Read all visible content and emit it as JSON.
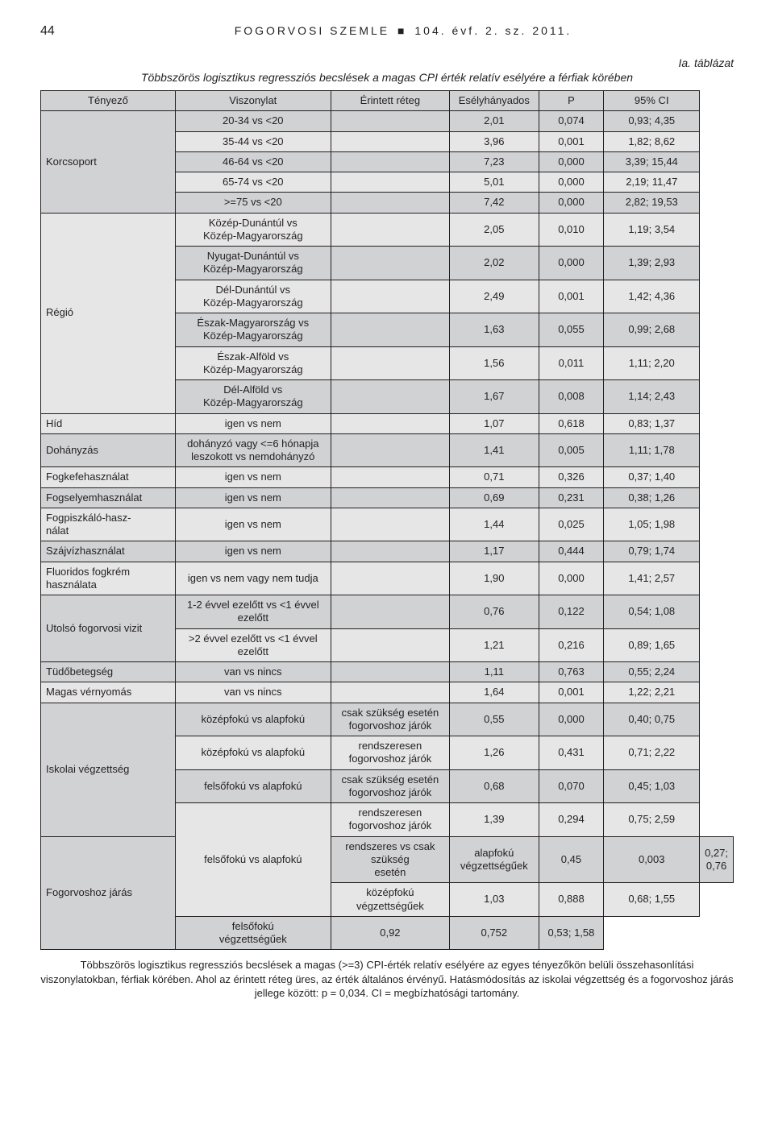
{
  "header": {
    "page_number": "44",
    "journal_name": "FOGORVOSI SZEMLE",
    "square": "■",
    "issue": "104. évf. 2. sz. 2011."
  },
  "table": {
    "label": "Ia. táblázat",
    "caption": "Többszörös logisztikus regressziós becslések a magas CPI érték relatív esélyére a férfiak körében",
    "columns": [
      "Tényező",
      "Viszonylat",
      "Érintett réteg",
      "Esélyhányados",
      "P",
      "95% CI"
    ],
    "col_widths": [
      "20%",
      "24%",
      "18%",
      "13%",
      "10%",
      "15%"
    ],
    "header_bg": "#d1d2d4",
    "row_light_bg": "#e6e6e7",
    "row_dark_bg": "#d1d2d4"
  },
  "rows": [
    {
      "factor": "Korcsoport",
      "frows": 5,
      "rel": "20-34 vs <20",
      "layer": "",
      "or": "2,01",
      "p": "0,074",
      "ci": "0,93; 4,35",
      "shade": "dark"
    },
    {
      "rel": "35-44 vs <20",
      "layer": "",
      "or": "3,96",
      "p": "0,001",
      "ci": "1,82; 8,62",
      "shade": "light"
    },
    {
      "rel": "46-64 vs <20",
      "layer": "",
      "or": "7,23",
      "p": "0,000",
      "ci": "3,39; 15,44",
      "shade": "dark"
    },
    {
      "rel": "65-74 vs <20",
      "layer": "",
      "or": "5,01",
      "p": "0,000",
      "ci": "2,19; 11,47",
      "shade": "light"
    },
    {
      "rel": ">=75 vs <20",
      "layer": "",
      "or": "7,42",
      "p": "0,000",
      "ci": "2,82; 19,53",
      "shade": "dark"
    },
    {
      "factor": "Régió",
      "frows": 6,
      "rel": "Közép-Dunántúl vs\nKözép-Magyarország",
      "layer": "",
      "or": "2,05",
      "p": "0,010",
      "ci": "1,19; 3,54",
      "shade": "light"
    },
    {
      "rel": "Nyugat-Dunántúl vs\nKözép-Magyarország",
      "layer": "",
      "or": "2,02",
      "p": "0,000",
      "ci": "1,39; 2,93",
      "shade": "dark"
    },
    {
      "rel": "Dél-Dunántúl vs\nKözép-Magyarország",
      "layer": "",
      "or": "2,49",
      "p": "0,001",
      "ci": "1,42; 4,36",
      "shade": "light"
    },
    {
      "rel": "Észak-Magyarország vs\nKözép-Magyarország",
      "layer": "",
      "or": "1,63",
      "p": "0,055",
      "ci": "0,99; 2,68",
      "shade": "dark"
    },
    {
      "rel": "Észak-Alföld vs\nKözép-Magyarország",
      "layer": "",
      "or": "1,56",
      "p": "0,011",
      "ci": "1,11; 2,20",
      "shade": "light"
    },
    {
      "rel": "Dél-Alföld vs\nKözép-Magyarország",
      "layer": "",
      "or": "1,67",
      "p": "0,008",
      "ci": "1,14; 2,43",
      "shade": "dark"
    },
    {
      "factor": "Híd",
      "frows": 1,
      "rel": "igen vs nem",
      "layer": "",
      "or": "1,07",
      "p": "0,618",
      "ci": "0,83; 1,37",
      "shade": "light"
    },
    {
      "factor": "Dohányzás",
      "frows": 1,
      "rel": "dohányzó vagy <=6 hónapja\nleszokott vs nemdohányzó",
      "layer": "",
      "or": "1,41",
      "p": "0,005",
      "ci": "1,11; 1,78",
      "shade": "dark"
    },
    {
      "factor": "Fogkefehasználat",
      "frows": 1,
      "rel": "igen vs nem",
      "layer": "",
      "or": "0,71",
      "p": "0,326",
      "ci": "0,37; 1,40",
      "shade": "light"
    },
    {
      "factor": "Fogselyemhasználat",
      "frows": 1,
      "rel": "igen vs nem",
      "layer": "",
      "or": "0,69",
      "p": "0,231",
      "ci": "0,38; 1,26",
      "shade": "dark"
    },
    {
      "factor": "Fogpiszkáló-hasz-\nnálat",
      "frows": 1,
      "rel": "igen vs nem",
      "layer": "",
      "or": "1,44",
      "p": "0,025",
      "ci": "1,05; 1,98",
      "shade": "light"
    },
    {
      "factor": "Szájvízhasználat",
      "frows": 1,
      "rel": "igen vs nem",
      "layer": "",
      "or": "1,17",
      "p": "0,444",
      "ci": "0,79; 1,74",
      "shade": "dark"
    },
    {
      "factor": "Fluoridos fogkrém\nhasználata",
      "frows": 1,
      "rel": "igen vs nem vagy nem tudja",
      "layer": "",
      "or": "1,90",
      "p": "0,000",
      "ci": "1,41; 2,57",
      "shade": "light"
    },
    {
      "factor": "Utolsó fogorvosi vizit",
      "frows": 2,
      "rel": "1-2 évvel ezelőtt vs <1 évvel\nezelőtt",
      "layer": "",
      "or": "0,76",
      "p": "0,122",
      "ci": "0,54; 1,08",
      "shade": "dark"
    },
    {
      "rel": ">2 évvel ezelőtt vs <1 évvel\nezelőtt",
      "layer": "",
      "or": "1,21",
      "p": "0,216",
      "ci": "0,89; 1,65",
      "shade": "light"
    },
    {
      "factor": "Tüdőbetegség",
      "frows": 1,
      "rel": "van vs nincs",
      "layer": "",
      "or": "1,11",
      "p": "0,763",
      "ci": "0,55; 2,24",
      "shade": "dark"
    },
    {
      "factor": "Magas vérnyomás",
      "frows": 1,
      "rel": "van vs nincs",
      "layer": "",
      "or": "1,64",
      "p": "0,001",
      "ci": "1,22; 2,21",
      "shade": "light"
    },
    {
      "factor": "Iskolai végzettség",
      "frows": 4,
      "rel": "középfokú vs alapfokú",
      "layer": "csak szükség esetén\nfogorvoshoz járók",
      "or": "0,55",
      "p": "0,000",
      "ci": "0,40; 0,75",
      "shade": "dark"
    },
    {
      "rel": "középfokú vs alapfokú",
      "layer": "rendszeresen\nfogorvoshoz járók",
      "or": "1,26",
      "p": "0,431",
      "ci": "0,71; 2,22",
      "shade": "light"
    },
    {
      "rel": "felsőfokú vs alapfokú",
      "layer": "csak szükség esetén\nfogorvoshoz járók",
      "or": "0,68",
      "p": "0,070",
      "ci": "0,45; 1,03",
      "shade": "dark"
    },
    {
      "rel": "felsőfokú vs alapfokú",
      "layer": "rendszeresen\nfogorvoshoz járók",
      "or": "1,39",
      "p": "0,294",
      "ci": "0,75; 2,59",
      "shade": "light"
    },
    {
      "factor": "Fogorvoshoz járás",
      "frows": 3,
      "rel": "rendszeres vs csak szükség\nesetén",
      "layer": "alapfokú\nvégzettségűek",
      "or": "0,45",
      "p": "0,003",
      "ci": "0,27; 0,76",
      "shade": "dark"
    },
    {
      "rel": "",
      "layer": "középfokú\nvégzettségűek",
      "or": "1,03",
      "p": "0,888",
      "ci": "0,68; 1,55",
      "shade": "light"
    },
    {
      "rel": "",
      "layer": "felsőfokú\nvégzettségűek",
      "or": "0,92",
      "p": "0,752",
      "ci": "0,53; 1,58",
      "shade": "dark"
    }
  ],
  "rel_span": {
    "25": 3
  },
  "footnote": "Többszörös logisztikus regressziós becslések a magas (>=3) CPI-érték relatív esélyére az egyes tényezőkön belüli összehasonlítási viszonylatokban, férfiak körében. Ahol az érintett réteg üres, az érték általános érvényű. Hatásmódosítás az iskolai végzettség és a fogorvoshoz járás jellege között: p = 0,034. CI = megbízhatósági tartomány."
}
